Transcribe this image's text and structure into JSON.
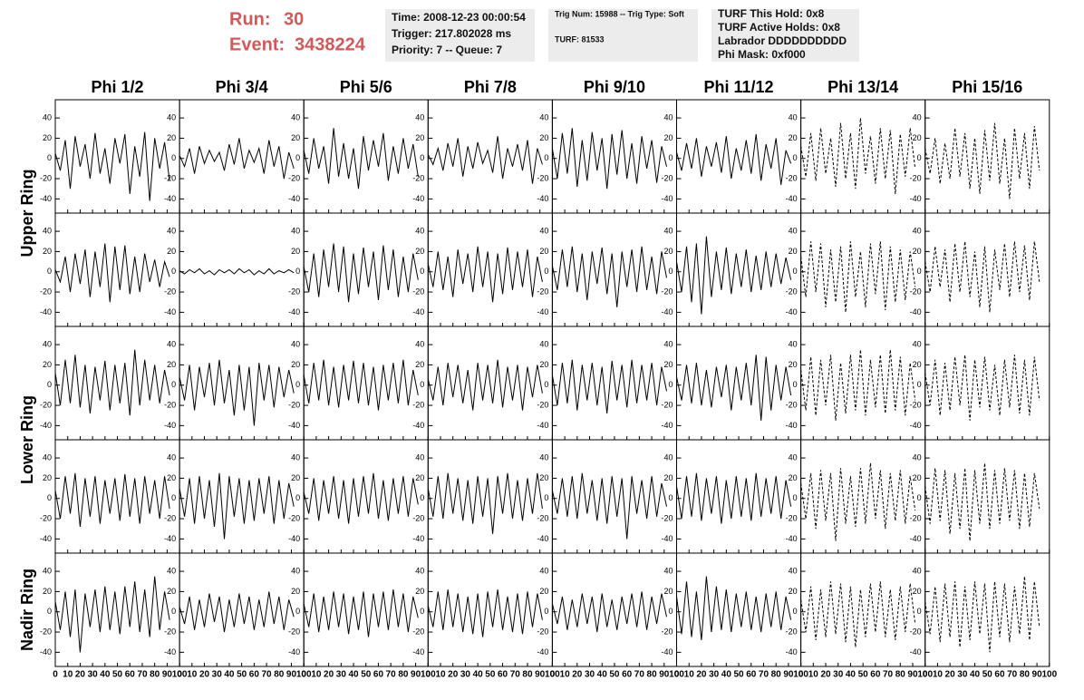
{
  "header": {
    "run_label": "Run:",
    "run": "30",
    "event_label": "Event:",
    "event": "3438224"
  },
  "info_boxes": [
    [
      "Time: 2008-12-23 00:00:54",
      "Trigger: 217.802028 ms",
      "Priority: 7 -- Queue: 7"
    ],
    [
      "Trig Num: 15988 -- Trig Type: Soft",
      "TURF: 81533"
    ],
    [
      "TURF This Hold: 0x8",
      "TURF Active Holds: 0x8",
      "Labrador DDDDDDDDDD",
      "Phi Mask: 0xf000"
    ]
  ],
  "chart_data": {
    "type": "line",
    "columns": [
      "Phi 1/2",
      "Phi 3/4",
      "Phi 5/6",
      "Phi 7/8",
      "Phi 9/10",
      "Phi 11/12",
      "Phi 13/14",
      "Phi 15/16"
    ],
    "row_labels": [
      "Upper Ring",
      "Lower Ring",
      "Nadir Ring"
    ],
    "line_styles": [
      "solid",
      "solid",
      "solid",
      "solid",
      "solid",
      "solid",
      "dashed",
      "dashed"
    ],
    "color": "#000000",
    "xlim": [
      0,
      100
    ],
    "xticks": [
      0,
      10,
      20,
      30,
      40,
      50,
      60,
      70,
      80,
      90,
      100
    ],
    "ylim": [
      -54,
      58
    ],
    "yticks": [
      -40,
      -20,
      0,
      20,
      40
    ],
    "x": [
      0,
      4,
      8,
      12,
      16,
      20,
      24,
      28,
      32,
      36,
      40,
      44,
      48,
      52,
      56,
      60,
      64,
      68,
      72,
      76,
      80,
      84,
      88,
      92
    ],
    "waveforms": [
      [
        [
          5,
          -12,
          18,
          -30,
          22,
          -8,
          14,
          -20,
          25,
          -15,
          10,
          -25,
          20,
          -5,
          24,
          -35,
          12,
          -18,
          26,
          -42,
          20,
          -10,
          16,
          -22
        ],
        [
          3,
          -8,
          10,
          -15,
          12,
          -5,
          8,
          -3,
          6,
          -12,
          14,
          -6,
          20,
          -10,
          8,
          -4,
          10,
          -15,
          18,
          -8,
          12,
          -20,
          6,
          -10
        ],
        [
          8,
          -15,
          20,
          -10,
          12,
          -25,
          30,
          -18,
          15,
          -20,
          10,
          -30,
          22,
          -12,
          18,
          -8,
          25,
          -22,
          12,
          -15,
          20,
          -10,
          14,
          -18
        ],
        [
          4,
          -6,
          10,
          -12,
          15,
          -8,
          20,
          -18,
          12,
          -10,
          16,
          -5,
          8,
          -14,
          22,
          -20,
          10,
          -8,
          14,
          -12,
          18,
          -25,
          10,
          -6
        ],
        [
          10,
          -20,
          25,
          -15,
          30,
          -28,
          18,
          -22,
          26,
          -12,
          20,
          -30,
          24,
          -16,
          28,
          -20,
          15,
          -25,
          22,
          -10,
          18,
          -24,
          12,
          -8
        ],
        [
          6,
          -12,
          15,
          -10,
          20,
          -18,
          12,
          -8,
          16,
          -14,
          22,
          -20,
          10,
          -12,
          18,
          -15,
          24,
          -22,
          14,
          -10,
          20,
          -26,
          8,
          -5
        ],
        [
          12,
          -18,
          25,
          -22,
          30,
          -15,
          20,
          -28,
          35,
          -20,
          25,
          -30,
          40,
          -15,
          22,
          -25,
          30,
          -20,
          28,
          -35,
          24,
          -18,
          30,
          -10
        ],
        [
          10,
          -15,
          20,
          -25,
          15,
          -20,
          30,
          -18,
          25,
          -30,
          20,
          -35,
          28,
          -22,
          35,
          -25,
          20,
          -40,
          30,
          -20,
          25,
          -30,
          32,
          -12
        ]
      ],
      [
        [
          2,
          -10,
          15,
          -20,
          18,
          -12,
          22,
          -25,
          20,
          -15,
          28,
          -30,
          25,
          -18,
          26,
          -22,
          15,
          -20,
          18,
          -10,
          12,
          -15,
          10,
          -5
        ],
        [
          1,
          -2,
          2,
          -1,
          3,
          -2,
          1,
          -3,
          2,
          -1,
          2,
          -2,
          3,
          -1,
          2,
          -3,
          1,
          -2,
          3,
          -2,
          1,
          -1,
          2,
          -1
        ],
        [
          5,
          -20,
          18,
          -25,
          22,
          -15,
          28,
          -20,
          25,
          -30,
          18,
          -22,
          24,
          -15,
          20,
          -28,
          26,
          -18,
          22,
          -25,
          15,
          -20,
          18,
          -8
        ],
        [
          8,
          -15,
          20,
          -18,
          15,
          -25,
          22,
          -12,
          18,
          -20,
          25,
          -15,
          20,
          -30,
          18,
          -22,
          24,
          -18,
          20,
          -15,
          22,
          -25,
          15,
          -10
        ],
        [
          6,
          -18,
          22,
          -15,
          25,
          -20,
          18,
          -28,
          20,
          -12,
          24,
          -22,
          18,
          -35,
          20,
          -15,
          22,
          -20,
          25,
          -18,
          15,
          -22,
          20,
          -6
        ],
        [
          10,
          -20,
          25,
          -30,
          28,
          -42,
          35,
          -25,
          20,
          -18,
          24,
          -22,
          18,
          -15,
          22,
          -20,
          16,
          -18,
          20,
          -15,
          18,
          -12,
          14,
          -8
        ],
        [
          15,
          -25,
          30,
          -20,
          28,
          -35,
          22,
          -30,
          25,
          -40,
          30,
          -25,
          20,
          -35,
          28,
          -22,
          30,
          -38,
          25,
          -30,
          22,
          -28,
          20,
          -15
        ],
        [
          10,
          -20,
          25,
          -15,
          22,
          -30,
          28,
          -20,
          30,
          -25,
          20,
          -35,
          25,
          -40,
          22,
          -18,
          28,
          -25,
          30,
          -20,
          26,
          -28,
          30,
          -10
        ]
      ],
      [
        [
          12,
          -20,
          25,
          -18,
          30,
          -22,
          20,
          -28,
          18,
          -15,
          24,
          -25,
          20,
          -18,
          22,
          -30,
          35,
          -20,
          25,
          -15,
          20,
          -18,
          15,
          -10
        ],
        [
          8,
          -15,
          20,
          -25,
          18,
          -12,
          22,
          -20,
          25,
          -18,
          15,
          -30,
          20,
          -25,
          18,
          -40,
          22,
          -15,
          20,
          -22,
          18,
          -12,
          15,
          -8
        ],
        [
          10,
          -18,
          22,
          -15,
          25,
          -20,
          18,
          -22,
          20,
          -15,
          24,
          -18,
          22,
          -20,
          18,
          -25,
          20,
          -15,
          22,
          -18,
          25,
          -20,
          15,
          -10
        ],
        [
          6,
          -15,
          18,
          -20,
          22,
          -12,
          20,
          -18,
          15,
          -25,
          22,
          -15,
          20,
          -18,
          25,
          -22,
          18,
          -15,
          20,
          -25,
          18,
          -12,
          20,
          -8
        ],
        [
          10,
          -20,
          22,
          -18,
          25,
          -25,
          20,
          -15,
          22,
          -20,
          18,
          -28,
          24,
          -15,
          20,
          -22,
          25,
          -18,
          20,
          -15,
          22,
          -20,
          18,
          -6
        ],
        [
          8,
          -15,
          20,
          -18,
          22,
          -20,
          15,
          -22,
          18,
          -12,
          20,
          -25,
          18,
          -15,
          22,
          -20,
          30,
          -35,
          28,
          -25,
          20,
          -15,
          18,
          -10
        ],
        [
          15,
          -25,
          28,
          -30,
          25,
          -20,
          30,
          -35,
          22,
          -28,
          30,
          -25,
          35,
          -30,
          25,
          -22,
          30,
          -28,
          35,
          -25,
          28,
          -30,
          22,
          -15
        ],
        [
          12,
          -20,
          25,
          -30,
          22,
          -25,
          28,
          -20,
          30,
          -35,
          25,
          -22,
          28,
          -25,
          20,
          -30,
          25,
          -22,
          30,
          -28,
          25,
          -30,
          28,
          -15
        ]
      ],
      [
        [
          8,
          -20,
          22,
          -15,
          25,
          -28,
          20,
          -18,
          22,
          -25,
          18,
          -15,
          20,
          -22,
          24,
          -18,
          20,
          -25,
          22,
          -15,
          18,
          -20,
          22,
          -10
        ],
        [
          10,
          -18,
          20,
          -25,
          22,
          -20,
          18,
          -28,
          25,
          -40,
          22,
          -18,
          20,
          -25,
          18,
          -22,
          20,
          -15,
          22,
          -25,
          18,
          -20,
          15,
          -8
        ],
        [
          6,
          -15,
          20,
          -22,
          18,
          -15,
          22,
          -20,
          18,
          -25,
          20,
          -18,
          22,
          -15,
          25,
          -20,
          18,
          -22,
          20,
          -15,
          22,
          -18,
          20,
          -6
        ],
        [
          10,
          -18,
          22,
          -20,
          25,
          -15,
          20,
          -22,
          18,
          -25,
          22,
          -18,
          20,
          -35,
          22,
          -15,
          25,
          -20,
          18,
          -22,
          20,
          -15,
          25,
          -10
        ],
        [
          8,
          -15,
          20,
          -18,
          22,
          -20,
          25,
          -15,
          18,
          -22,
          20,
          -25,
          22,
          -18,
          20,
          -40,
          22,
          -15,
          18,
          -20,
          22,
          -18,
          15,
          -8
        ],
        [
          12,
          -20,
          22,
          -18,
          25,
          -22,
          20,
          -15,
          22,
          -25,
          18,
          -20,
          22,
          -18,
          20,
          -22,
          25,
          -18,
          20,
          -15,
          22,
          -20,
          18,
          -8
        ],
        [
          15,
          -20,
          25,
          -30,
          28,
          -22,
          25,
          -42,
          30,
          -25,
          22,
          -28,
          30,
          -25,
          35,
          -20,
          28,
          -30,
          25,
          -22,
          28,
          -25,
          22,
          -12
        ],
        [
          12,
          -25,
          30,
          -22,
          28,
          -35,
          25,
          -30,
          30,
          -42,
          28,
          -25,
          35,
          -30,
          28,
          -25,
          30,
          -22,
          28,
          -30,
          25,
          -28,
          25,
          -10
        ]
      ],
      [
        [
          10,
          -18,
          20,
          -25,
          22,
          -40,
          18,
          -15,
          22,
          -20,
          25,
          -18,
          20,
          -22,
          25,
          -15,
          30,
          -20,
          22,
          -25,
          35,
          -18,
          20,
          -8
        ],
        [
          5,
          -12,
          15,
          -18,
          12,
          -15,
          18,
          -10,
          15,
          -20,
          12,
          -15,
          18,
          -12,
          15,
          -18,
          12,
          -15,
          20,
          -12,
          15,
          -18,
          12,
          -5
        ],
        [
          8,
          -15,
          18,
          -20,
          15,
          -18,
          20,
          -15,
          18,
          -22,
          15,
          -18,
          20,
          -25,
          18,
          -15,
          20,
          -18,
          22,
          -15,
          18,
          -20,
          15,
          -6
        ],
        [
          6,
          -15,
          20,
          -18,
          22,
          -15,
          18,
          -20,
          15,
          -22,
          18,
          -25,
          20,
          -15,
          22,
          -18,
          15,
          -20,
          18,
          -22,
          20,
          -15,
          18,
          -8
        ],
        [
          8,
          -12,
          15,
          -18,
          12,
          -15,
          18,
          -12,
          15,
          -20,
          18,
          -15,
          12,
          -18,
          15,
          -12,
          18,
          -15,
          20,
          -18,
          15,
          -12,
          18,
          -5
        ],
        [
          15,
          -22,
          30,
          -25,
          20,
          -28,
          35,
          -20,
          25,
          -18,
          22,
          -20,
          18,
          -15,
          20,
          -18,
          15,
          -20,
          18,
          -15,
          20,
          -18,
          15,
          -8
        ],
        [
          12,
          -20,
          25,
          -28,
          22,
          -25,
          30,
          -22,
          28,
          -30,
          25,
          -35,
          22,
          -25,
          28,
          -20,
          30,
          -25,
          22,
          -28,
          25,
          -20,
          28,
          -12
        ],
        [
          10,
          -22,
          25,
          -30,
          28,
          -25,
          30,
          -35,
          25,
          -28,
          30,
          -22,
          28,
          -40,
          30,
          -25,
          28,
          -30,
          25,
          -22,
          35,
          -28,
          30,
          -15
        ]
      ]
    ]
  }
}
